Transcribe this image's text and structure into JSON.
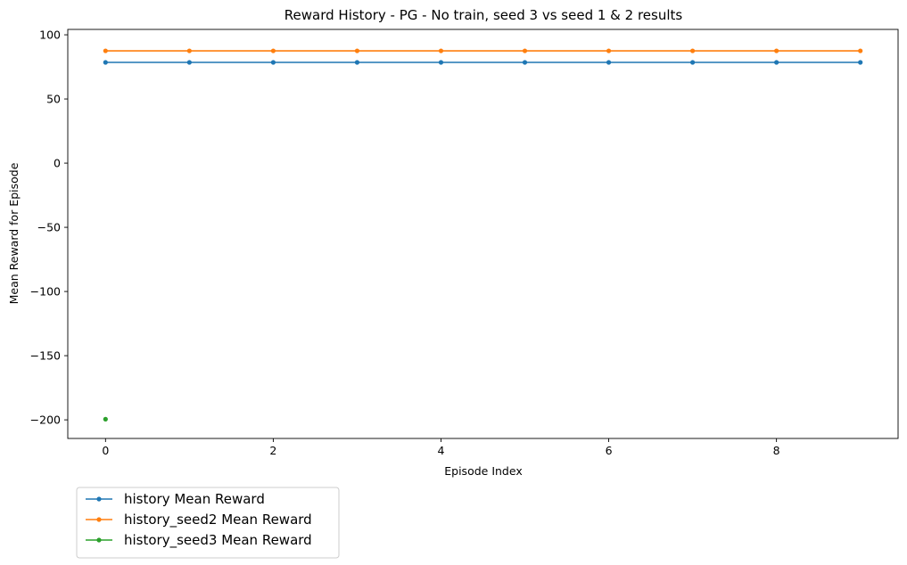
{
  "chart_data": {
    "type": "line",
    "title": "Reward History - PG - No train, seed 3 vs seed 1 & 2 results",
    "xlabel": "Episode Index",
    "ylabel": "Mean Reward for Episode",
    "xlim": [
      -0.45,
      9.45
    ],
    "ylim": [
      -214.5,
      104.2
    ],
    "xticks": [
      0,
      2,
      4,
      6,
      8
    ],
    "yticks": [
      100,
      50,
      0,
      -50,
      -100,
      -150,
      -200
    ],
    "xtick_labels": [
      "0",
      "2",
      "4",
      "6",
      "8"
    ],
    "ytick_labels": [
      "100",
      "50",
      "0",
      "−50",
      "−100",
      "−150",
      "−200"
    ],
    "grid": false,
    "legend_position": "below-left (outside plot)",
    "series": [
      {
        "name": "history Mean Reward",
        "color": "#1f77b4",
        "marker": "point",
        "x": [
          0,
          1,
          2,
          3,
          4,
          5,
          6,
          7,
          8,
          9
        ],
        "y": [
          78.5,
          78.5,
          78.5,
          78.5,
          78.5,
          78.5,
          78.5,
          78.5,
          78.5,
          78.5
        ]
      },
      {
        "name": "history_seed2 Mean Reward",
        "color": "#ff7f0e",
        "marker": "point",
        "x": [
          0,
          1,
          2,
          3,
          4,
          5,
          6,
          7,
          8,
          9
        ],
        "y": [
          87.5,
          87.5,
          87.5,
          87.5,
          87.5,
          87.5,
          87.5,
          87.5,
          87.5,
          87.5
        ]
      },
      {
        "name": "history_seed3 Mean Reward",
        "color": "#2ca02c",
        "marker": "point",
        "x": [
          0
        ],
        "y": [
          -199.5
        ]
      }
    ]
  }
}
